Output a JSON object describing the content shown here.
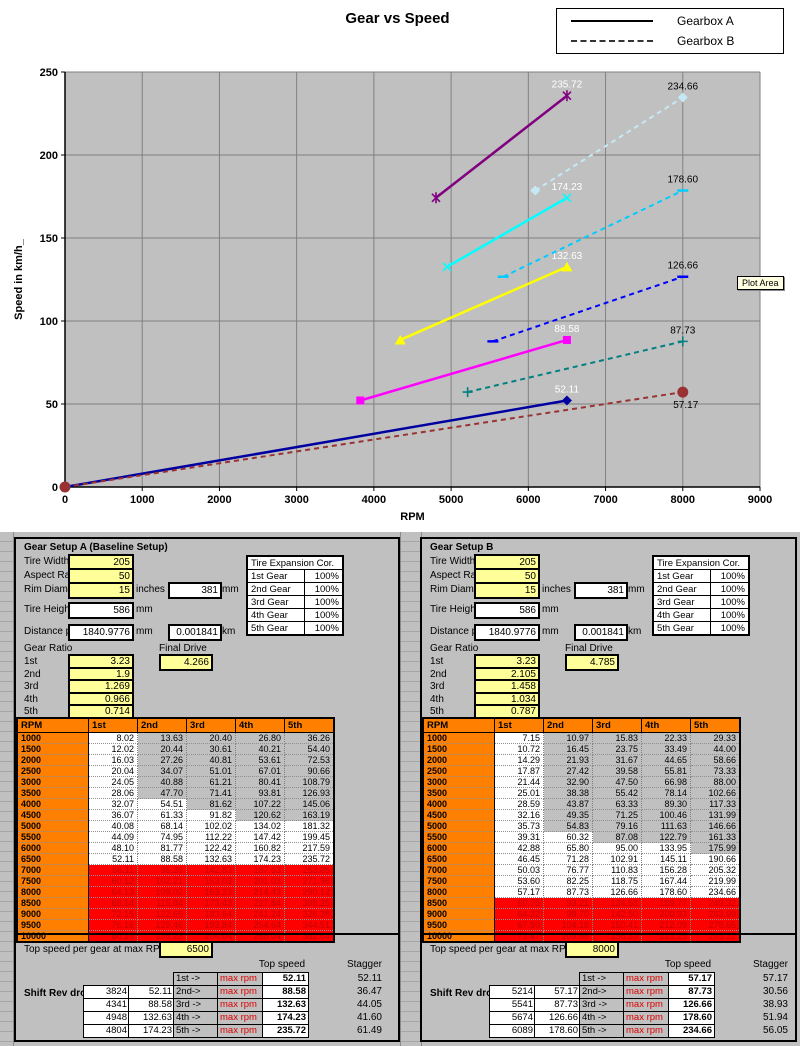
{
  "chart_data": {
    "type": "line",
    "title": "Gear vs Speed",
    "xlabel": "RPM",
    "ylabel": "Speed in km/h_",
    "xlim": [
      0,
      9000
    ],
    "ylim": [
      0,
      250
    ],
    "x_ticks": [
      0,
      1000,
      2000,
      3000,
      4000,
      5000,
      6000,
      7000,
      8000,
      9000
    ],
    "y_ticks": [
      0,
      50,
      100,
      150,
      200,
      250
    ],
    "grid": true,
    "plot_bg": "#c0c0c0",
    "grid_color": "#808080",
    "plot_area_tooltip": "Plot Area",
    "legend": {
      "position": "top-right",
      "entries": [
        "Gearbox A",
        "Gearbox B"
      ]
    },
    "series": [
      {
        "name": "Gearbox A 1st",
        "color": "#0000a0",
        "line": "solid",
        "marker": "diamond",
        "points": [
          [
            0,
            0
          ],
          [
            6500,
            52.11
          ]
        ],
        "label": {
          "text": "52.11",
          "color": "#ffffff",
          "placement": "above"
        }
      },
      {
        "name": "Gearbox A 2nd",
        "color": "#ff00ff",
        "line": "solid",
        "marker": "square",
        "points": [
          [
            3824,
            52.11
          ],
          [
            6500,
            88.58
          ]
        ],
        "label": {
          "text": "88.58",
          "color": "#ffffff",
          "placement": "above"
        }
      },
      {
        "name": "Gearbox A 3rd",
        "color": "#ffff00",
        "line": "solid",
        "marker": "triangle",
        "points": [
          [
            4341,
            88.58
          ],
          [
            6500,
            132.63
          ]
        ],
        "label": {
          "text": "132.63",
          "color": "#ffffff",
          "placement": "above"
        }
      },
      {
        "name": "Gearbox A 4th",
        "color": "#00ffff",
        "line": "solid",
        "marker": "x",
        "points": [
          [
            4948,
            132.63
          ],
          [
            6500,
            174.23
          ]
        ],
        "label": {
          "text": "174.23",
          "color": "#ffffff",
          "placement": "above"
        }
      },
      {
        "name": "Gearbox A 5th",
        "color": "#800080",
        "line": "solid",
        "marker": "star",
        "points": [
          [
            4804,
            174.23
          ],
          [
            6500,
            235.72
          ]
        ],
        "label": {
          "text": "235.72",
          "color": "#ffffff",
          "placement": "above"
        }
      },
      {
        "name": "Gearbox B 1st",
        "color": "#993333",
        "line": "dashed",
        "marker": "circle",
        "points": [
          [
            0,
            0
          ],
          [
            8000,
            57.17
          ]
        ],
        "label": {
          "text": "57.17",
          "color": "#000000",
          "placement": "below"
        }
      },
      {
        "name": "Gearbox B 2nd",
        "color": "#008080",
        "line": "dashed",
        "marker": "plus",
        "points": [
          [
            5214,
            57.17
          ],
          [
            8000,
            87.73
          ]
        ],
        "label": {
          "text": "87.73",
          "color": "#000000",
          "placement": "above"
        }
      },
      {
        "name": "Gearbox B 3rd",
        "color": "#0000ff",
        "line": "dashed",
        "marker": "dash",
        "points": [
          [
            5541,
            87.73
          ],
          [
            8000,
            126.66
          ]
        ],
        "label": {
          "text": "126.66",
          "color": "#000000",
          "placement": "above"
        }
      },
      {
        "name": "Gearbox B 4th",
        "color": "#00ccff",
        "line": "dashed",
        "marker": "dash",
        "points": [
          [
            5674,
            126.66
          ],
          [
            8000,
            178.6
          ]
        ],
        "label": {
          "text": "178.60",
          "color": "#000000",
          "placement": "above"
        }
      },
      {
        "name": "Gearbox B 5th",
        "color": "#c5e8f5",
        "line": "dashed",
        "marker": "diamond",
        "points": [
          [
            6089,
            178.6
          ],
          [
            8000,
            234.66
          ]
        ],
        "label": {
          "text": "234.66",
          "color": "#000000",
          "placement": "above"
        }
      }
    ]
  },
  "panels": [
    {
      "title": "Gear Setup A (Baseline Setup)",
      "fields": {
        "tire_width": {
          "label": "Tire Width",
          "value": "205"
        },
        "aspect_ratio": {
          "label": "Aspect Ratio",
          "value": "50"
        },
        "rim_diameter": {
          "label": "Rim Diameter (in)",
          "value": "15",
          "suffix": "inches =",
          "converted": "381",
          "unit": "mm"
        },
        "tire_height": {
          "label": "Tire Height (in)",
          "value": "586",
          "unit": "mm"
        },
        "distance": {
          "label": "Distance per rot.",
          "value": "1840.9776",
          "unit": "mm",
          "value2": "0.001841",
          "unit2": "km"
        }
      },
      "expansion": {
        "title": "Tire Expansion Cor.",
        "rows": [
          [
            "1st Gear",
            "100%"
          ],
          [
            "2nd Gear",
            "100%"
          ],
          [
            "3rd Gear",
            "100%"
          ],
          [
            "4th Gear",
            "100%"
          ],
          [
            "5th Gear",
            "100%"
          ]
        ]
      },
      "gear_ratio_label": "Gear Ratio",
      "ratios": [
        [
          "1st",
          "3.23"
        ],
        [
          "2nd",
          "1.9"
        ],
        [
          "3rd",
          "1.269"
        ],
        [
          "4th",
          "0.966"
        ],
        [
          "5th",
          "0.714"
        ]
      ],
      "final_drive": {
        "label": "Final Drive",
        "value": "4.266"
      },
      "speed_table": {
        "headers": [
          "RPM",
          "1st",
          "2nd",
          "3rd",
          "4th",
          "5th"
        ],
        "max_rpm": 6500,
        "shift_speeds": [
          0,
          52.11,
          88.58,
          132.63,
          174.23
        ],
        "rows": [
          [
            1000,
            "8.02",
            "13.63",
            "20.40",
            "26.80",
            "36.26"
          ],
          [
            1500,
            "12.02",
            "20.44",
            "30.61",
            "40.21",
            "54.40"
          ],
          [
            2000,
            "16.03",
            "27.26",
            "40.81",
            "53.61",
            "72.53"
          ],
          [
            2500,
            "20.04",
            "34.07",
            "51.01",
            "67.01",
            "90.66"
          ],
          [
            3000,
            "24.05",
            "40.88",
            "61.21",
            "80.41",
            "108.79"
          ],
          [
            3500,
            "28.06",
            "47.70",
            "71.41",
            "93.81",
            "126.93"
          ],
          [
            4000,
            "32.07",
            "54.51",
            "81.62",
            "107.22",
            "145.06"
          ],
          [
            4500,
            "36.07",
            "61.33",
            "91.82",
            "120.62",
            "163.19"
          ],
          [
            5000,
            "40.08",
            "68.14",
            "102.02",
            "134.02",
            "181.32"
          ],
          [
            5500,
            "44.09",
            "74.95",
            "112.22",
            "147.42",
            "199.45"
          ],
          [
            6000,
            "48.10",
            "81.77",
            "122.42",
            "160.82",
            "217.59"
          ],
          [
            6500,
            "52.11",
            "88.58",
            "132.63",
            "174.23",
            "235.72"
          ],
          [
            7000,
            "56.11",
            "95.39",
            "142.83",
            "187.63",
            "253.85"
          ],
          [
            7500,
            "60.12",
            "102.21",
            "153.03",
            "201.03",
            "271.98"
          ],
          [
            8000,
            "64.13",
            "109.02",
            "163.23",
            "214.43",
            "290.12"
          ],
          [
            8500,
            "68.14",
            "115.84",
            "173.43",
            "227.84",
            "308.25"
          ],
          [
            9000,
            "72.15",
            "122.65",
            "183.64",
            "241.24",
            "326.38"
          ],
          [
            9500,
            "76.16",
            "129.46",
            "193.84",
            "254.64",
            "344.51"
          ],
          [
            10000,
            "80.16",
            "136.28",
            "204.04",
            "268.04",
            "362.64"
          ]
        ]
      },
      "footer": {
        "max_rpm_label": "Top speed per gear at max RPM of",
        "max_rpm_value": "6500",
        "top_speed_label": "Top speed",
        "stagger_label": "Stagger",
        "shift_label": "Shift Rev drop",
        "max_rpm_text": "max rpm",
        "rows": [
          {
            "drop": "",
            "speed": "",
            "gear": "1st ->",
            "top": "52.11",
            "stagger": "52.11"
          },
          {
            "drop": "3824",
            "speed": "52.11",
            "gear": "2nd->",
            "top": "88.58",
            "stagger": "36.47"
          },
          {
            "drop": "4341",
            "speed": "88.58",
            "gear": "3rd ->",
            "top": "132.63",
            "stagger": "44.05"
          },
          {
            "drop": "4948",
            "speed": "132.63",
            "gear": "4th ->",
            "top": "174.23",
            "stagger": "41.60"
          },
          {
            "drop": "4804",
            "speed": "174.23",
            "gear": "5th ->",
            "top": "235.72",
            "stagger": "61.49"
          }
        ]
      }
    },
    {
      "title": "Gear Setup B",
      "fields": {
        "tire_width": {
          "label": "Tire Width",
          "value": "205"
        },
        "aspect_ratio": {
          "label": "Aspect Ratio",
          "value": "50"
        },
        "rim_diameter": {
          "label": "Rim Diameter (in)",
          "value": "15",
          "suffix": "inches =",
          "converted": "381",
          "unit": "mm"
        },
        "tire_height": {
          "label": "Tire Height (in)",
          "value": "586",
          "unit": "mm"
        },
        "distance": {
          "label": "Distance per rot.",
          "value": "1840.9776",
          "unit": "mm",
          "value2": "0.001841",
          "unit2": "km"
        }
      },
      "expansion": {
        "title": "Tire Expansion Cor.",
        "rows": [
          [
            "1st Gear",
            "100%"
          ],
          [
            "2nd Gear",
            "100%"
          ],
          [
            "3rd Gear",
            "100%"
          ],
          [
            "4th Gear",
            "100%"
          ],
          [
            "5th Gear",
            "100%"
          ]
        ]
      },
      "gear_ratio_label": "Gear Ratio",
      "ratios": [
        [
          "1st",
          "3.23"
        ],
        [
          "2nd",
          "2.105"
        ],
        [
          "3rd",
          "1.458"
        ],
        [
          "4th",
          "1.034"
        ],
        [
          "5th",
          "0.787"
        ]
      ],
      "final_drive": {
        "label": "Final Drive",
        "value": "4.785"
      },
      "speed_table": {
        "headers": [
          "RPM",
          "1st",
          "2nd",
          "3rd",
          "4th",
          "5th"
        ],
        "max_rpm": 8000,
        "shift_speeds": [
          0,
          57.17,
          87.73,
          126.66,
          178.6
        ],
        "rows": [
          [
            1000,
            "7.15",
            "10.97",
            "15.83",
            "22.33",
            "29.33"
          ],
          [
            1500,
            "10.72",
            "16.45",
            "23.75",
            "33.49",
            "44.00"
          ],
          [
            2000,
            "14.29",
            "21.93",
            "31.67",
            "44.65",
            "58.66"
          ],
          [
            2500,
            "17.87",
            "27.42",
            "39.58",
            "55.81",
            "73.33"
          ],
          [
            3000,
            "21.44",
            "32.90",
            "47.50",
            "66.98",
            "88.00"
          ],
          [
            3500,
            "25.01",
            "38.38",
            "55.42",
            "78.14",
            "102.66"
          ],
          [
            4000,
            "28.59",
            "43.87",
            "63.33",
            "89.30",
            "117.33"
          ],
          [
            4500,
            "32.16",
            "49.35",
            "71.25",
            "100.46",
            "131.99"
          ],
          [
            5000,
            "35.73",
            "54.83",
            "79.16",
            "111.63",
            "146.66"
          ],
          [
            5500,
            "39.31",
            "60.32",
            "87.08",
            "122.79",
            "161.33"
          ],
          [
            6000,
            "42.88",
            "65.80",
            "95.00",
            "133.95",
            "175.99"
          ],
          [
            6500,
            "46.45",
            "71.28",
            "102.91",
            "145.11",
            "190.66"
          ],
          [
            7000,
            "50.03",
            "76.77",
            "110.83",
            "156.28",
            "205.32"
          ],
          [
            7500,
            "53.60",
            "82.25",
            "118.75",
            "167.44",
            "219.99"
          ],
          [
            8000,
            "57.17",
            "87.73",
            "126.66",
            "178.60",
            "234.66"
          ],
          [
            8500,
            "60.75",
            "93.21",
            "134.58",
            "189.77",
            "249.32"
          ],
          [
            9000,
            "64.32",
            "98.70",
            "142.50",
            "200.93",
            "263.99"
          ],
          [
            9500,
            "67.90",
            "104.18",
            "150.41",
            "212.09",
            "278.65"
          ],
          [
            10000,
            "71.47",
            "109.66",
            "158.33",
            "223.25",
            "293.32"
          ]
        ]
      },
      "footer": {
        "max_rpm_label": "Top speed per gear at max RPM of",
        "max_rpm_value": "8000",
        "top_speed_label": "Top speed",
        "stagger_label": "Stagger",
        "shift_label": "Shift Rev drop",
        "max_rpm_text": "max rpm",
        "rows": [
          {
            "drop": "",
            "speed": "",
            "gear": "1st ->",
            "top": "57.17",
            "stagger": "57.17"
          },
          {
            "drop": "5214",
            "speed": "57.17",
            "gear": "2nd->",
            "top": "87.73",
            "stagger": "30.56"
          },
          {
            "drop": "5541",
            "speed": "87.73",
            "gear": "3rd ->",
            "top": "126.66",
            "stagger": "38.93"
          },
          {
            "drop": "5674",
            "speed": "126.66",
            "gear": "4th ->",
            "top": "178.60",
            "stagger": "51.94"
          },
          {
            "drop": "6089",
            "speed": "178.60",
            "gear": "5th ->",
            "top": "234.66",
            "stagger": "56.05"
          }
        ]
      }
    }
  ]
}
